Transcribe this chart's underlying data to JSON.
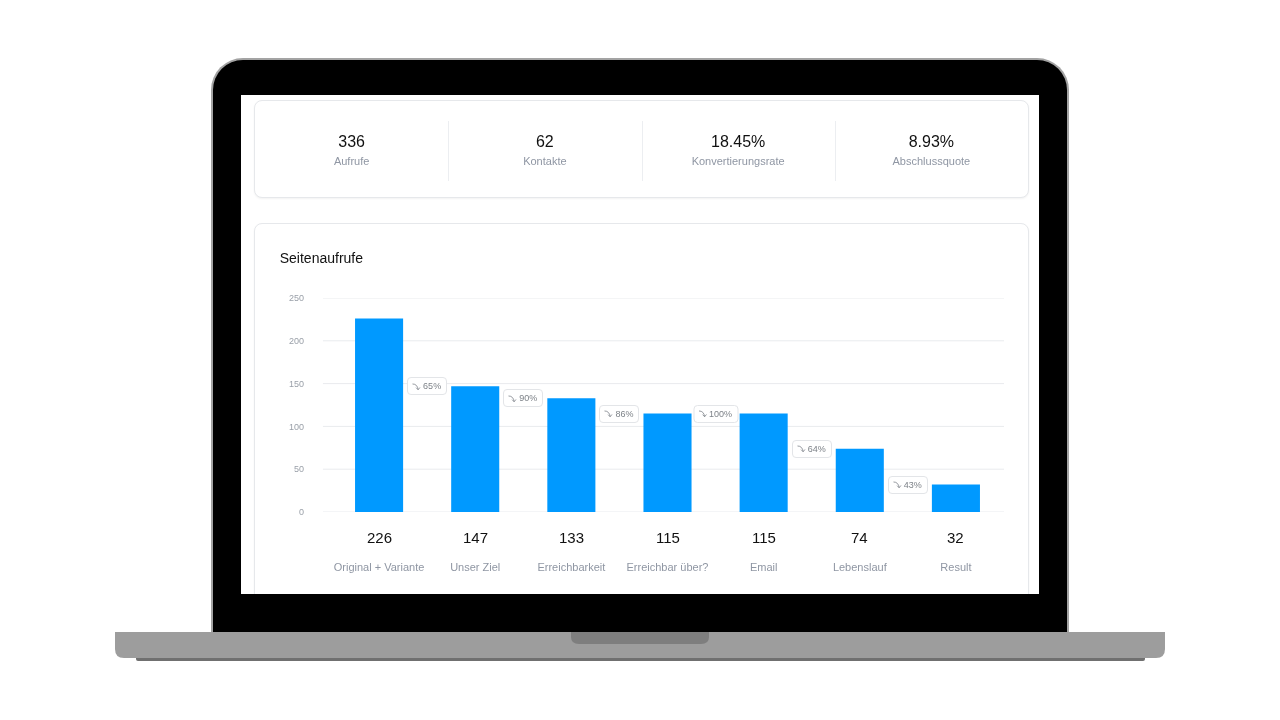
{
  "chart_data": [
    {
      "type": "other",
      "annotations": [
        "336",
        "Aufrufe",
        "62",
        "Kontakte",
        "18.45%",
        "Konvertierungsrate",
        "8.93%",
        "Abschlussquote"
      ]
    },
    {
      "type": "bar",
      "title": "Seitenaufrufe",
      "categories": [
        "Original + Variante",
        "Unser Ziel",
        "Erreichbarkeit",
        "Erreichbar über?",
        "Email",
        "Lebenslauf",
        "Result"
      ],
      "values": [
        226,
        147,
        133,
        115,
        115,
        74,
        32
      ],
      "color": "#0099ff",
      "ylim": [
        0,
        250
      ],
      "yticks": [
        0,
        50,
        100,
        150,
        200,
        250
      ],
      "grid": "y",
      "data_labels": true,
      "annotations": [
        "65%",
        "90%",
        "86%",
        "100%",
        "64%",
        "43%"
      ]
    }
  ]
}
